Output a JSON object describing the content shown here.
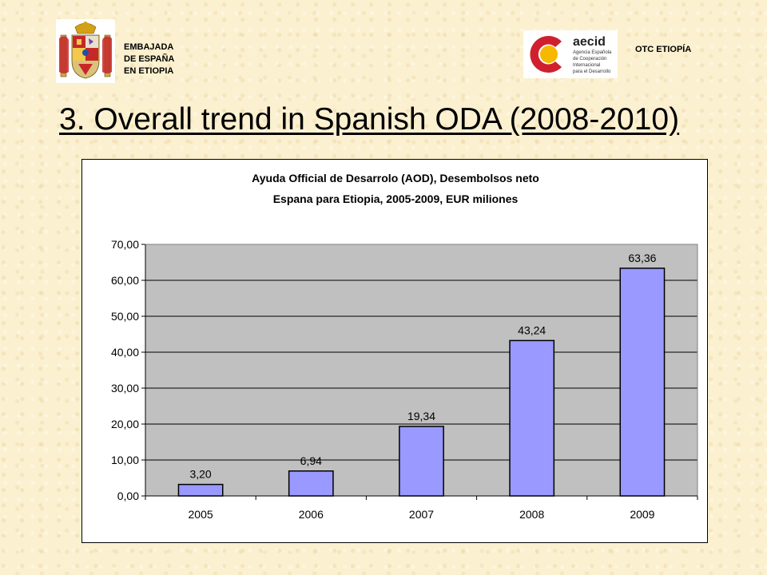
{
  "header": {
    "embassy_lines": [
      "EMBAJADA",
      "DE ESPAÑA",
      "EN ETIOPIA"
    ],
    "aecid_name": "aecid",
    "aecid_tagline_lines": [
      "Agencia Española",
      "de Cooperación",
      "Internacional",
      "para el Desarrollo"
    ],
    "otc_label": "OTC ETIOPÍA",
    "colors": {
      "aecid_red": "#d0202e",
      "aecid_yellow": "#f6b800"
    }
  },
  "slide": {
    "title": "3. Overall trend in Spanish ODA (2008-2010)"
  },
  "chart_data": {
    "type": "bar",
    "title": "Ayuda Official de Desarrolo (AOD), Desembolsos neto",
    "subtitle": "Espana para Etiopia, 2005-2009, EUR miliones",
    "categories": [
      "2005",
      "2006",
      "2007",
      "2008",
      "2009"
    ],
    "values": [
      3.2,
      6.94,
      19.34,
      43.24,
      63.36
    ],
    "value_labels": [
      "3,20",
      "6,94",
      "19,34",
      "43,24",
      "63,36"
    ],
    "y_ticks": [
      "0,00",
      "10,00",
      "20,00",
      "30,00",
      "40,00",
      "50,00",
      "60,00",
      "70,00"
    ],
    "ylim": [
      0,
      70
    ],
    "xlabel": "",
    "ylabel": "",
    "grid": true,
    "legend": "none",
    "colors": {
      "bar": "#9999ff",
      "plot_background": "#c0c0c0"
    }
  }
}
